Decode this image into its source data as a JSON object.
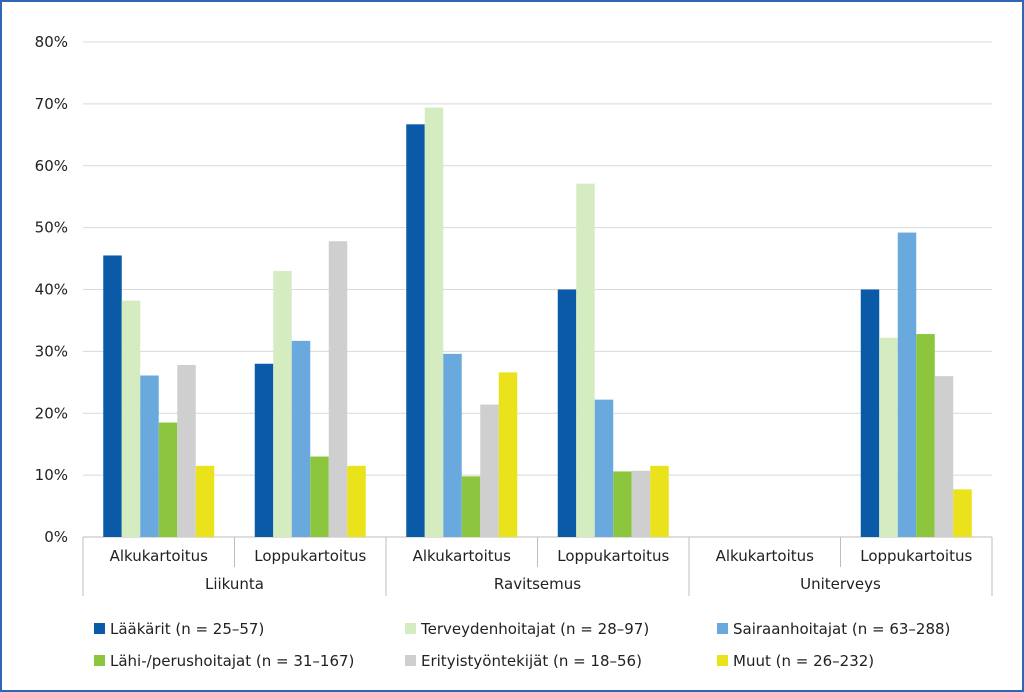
{
  "chart_data": {
    "type": "bar",
    "title": "",
    "xlabel": "",
    "ylabel": "",
    "ylim": [
      0,
      0.8
    ],
    "yticks": [
      "0%",
      "10%",
      "20%",
      "30%",
      "40%",
      "50%",
      "60%",
      "70%",
      "80%"
    ],
    "grid": true,
    "legend_position": "bottom",
    "groups": [
      "Liikunta",
      "Ravitsemus",
      "Uniterveys"
    ],
    "categories": [
      "Alkukartoitus",
      "Loppukartoitus",
      "Alkukartoitus",
      "Loppukartoitus",
      "Alkukartoitus",
      "Loppukartoitus"
    ],
    "series": [
      {
        "name": "Lääkärit (n = 25–57)",
        "color": "#0b5aa8",
        "values": [
          0.455,
          0.28,
          0.667,
          0.4,
          null,
          0.4
        ]
      },
      {
        "name": "Terveydenhoitajat (n = 28–97)",
        "color": "#d5ebc0",
        "values": [
          0.382,
          0.43,
          0.694,
          0.571,
          null,
          0.322
        ]
      },
      {
        "name": "Sairaanhoitajat (n = 63–288)",
        "color": "#6aa9dd",
        "values": [
          0.261,
          0.317,
          0.296,
          0.222,
          null,
          0.492
        ]
      },
      {
        "name": "Lähi-/perushoitajat (n = 31–167)",
        "color": "#8cc63f",
        "values": [
          0.185,
          0.13,
          0.098,
          0.106,
          null,
          0.328
        ]
      },
      {
        "name": "Erityistyöntekijät (n = 18–56)",
        "color": "#cfcfcf",
        "values": [
          0.278,
          0.478,
          0.214,
          0.107,
          null,
          0.26
        ]
      },
      {
        "name": "Muut (n = 26–232)",
        "color": "#eae21b",
        "values": [
          0.115,
          0.115,
          0.266,
          0.115,
          null,
          0.077
        ]
      }
    ]
  }
}
